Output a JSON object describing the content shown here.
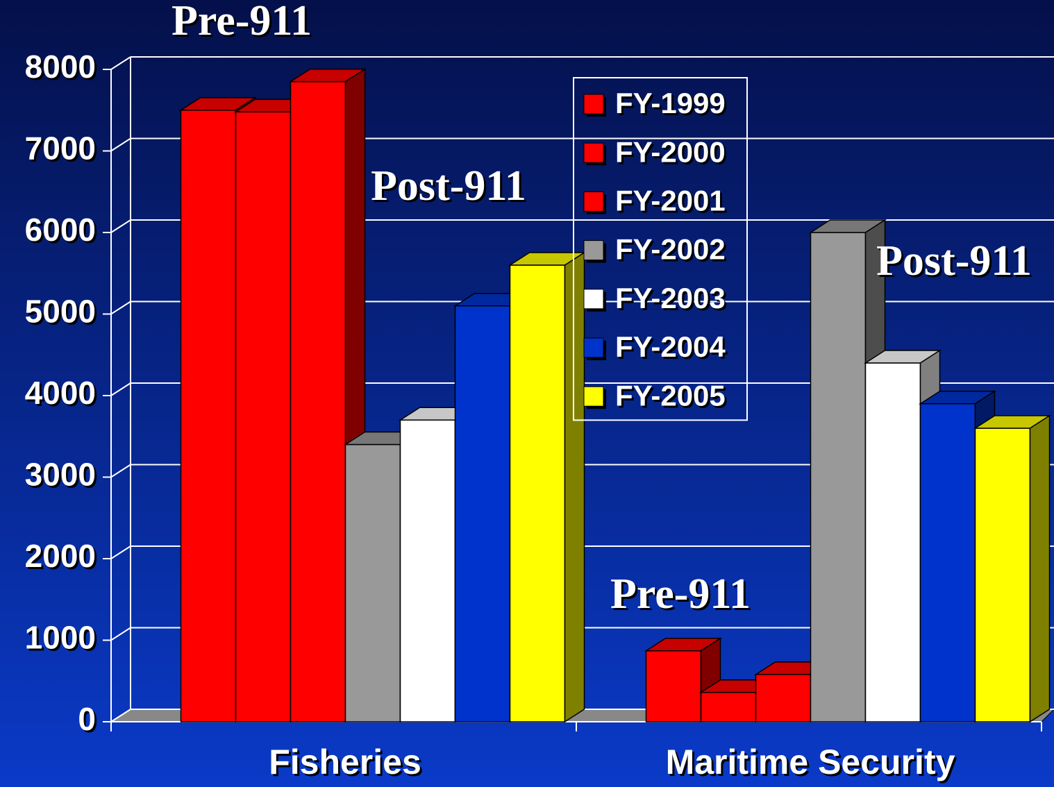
{
  "chart_data": {
    "type": "bar3d",
    "categories": [
      "Fisheries",
      "Maritime Security"
    ],
    "series": [
      {
        "name": "FY-1999",
        "color": "#ff0000",
        "values": [
          7500,
          870
        ]
      },
      {
        "name": "FY-2000",
        "color": "#ff0000",
        "values": [
          7480,
          360
        ]
      },
      {
        "name": "FY-2001",
        "color": "#ff0000",
        "values": [
          7850,
          580
        ]
      },
      {
        "name": "FY-2002",
        "color": "#999999",
        "values": [
          3400,
          6000
        ]
      },
      {
        "name": "FY-2003",
        "color": "#ffffff",
        "values": [
          3700,
          4400
        ]
      },
      {
        "name": "FY-2004",
        "color": "#0033cc",
        "values": [
          5100,
          3900
        ]
      },
      {
        "name": "FY-2005",
        "color": "#ffff00",
        "values": [
          5600,
          3600
        ]
      }
    ],
    "ylim": [
      0,
      8000
    ],
    "yticks": [
      0,
      1000,
      2000,
      3000,
      4000,
      5000,
      6000,
      7000,
      8000
    ],
    "grid": true,
    "annotations": [
      "Pre-911",
      "Post-911",
      "Pre-911",
      "Post-911"
    ]
  }
}
